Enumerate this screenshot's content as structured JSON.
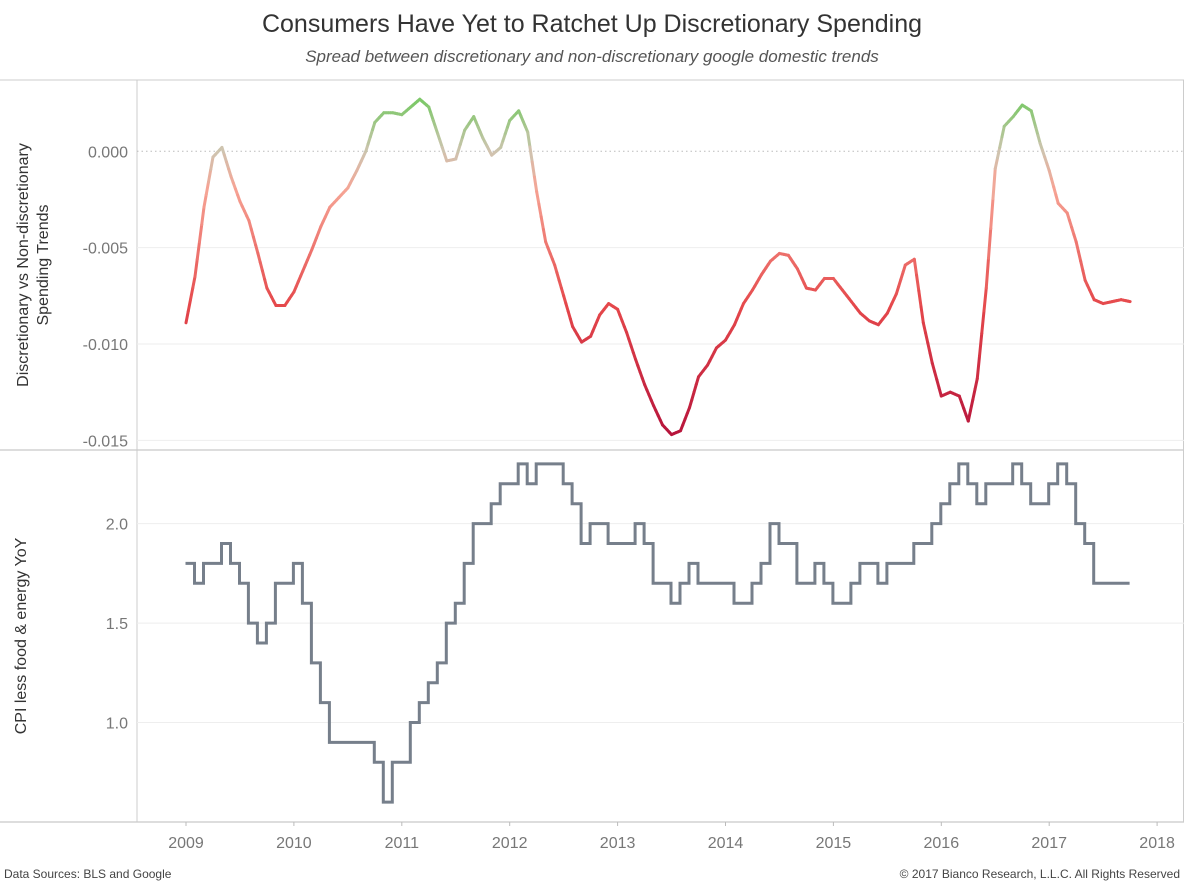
{
  "title": "Consumers Have Yet to Ratchet Up Discretionary Spending",
  "subtitle": "Spread between discretionary and non-discretionary google domestic trends",
  "footer": {
    "sources": "Data Sources: BLS and Google",
    "copyright": "© 2017 Bianco Research, L.L.C. All Rights Reserved"
  },
  "chart_data": [
    {
      "type": "line",
      "ylabel": "Discretionary vs Non-discretionary Spending Trends",
      "ylim": [
        -0.0155,
        0.0037
      ],
      "yticks": [
        "0.000",
        "-0.005",
        "-0.010",
        "-0.015"
      ],
      "ytick_values": [
        0,
        -0.005,
        -0.01,
        -0.015
      ],
      "reference_line": 0,
      "grid": true,
      "color_scale": [
        {
          "value": -0.015,
          "color": "#b5123b"
        },
        {
          "value": -0.008,
          "color": "#e5484b"
        },
        {
          "value": -0.002,
          "color": "#f6a394"
        },
        {
          "value": 0.0,
          "color": "#cfc4b0"
        },
        {
          "value": 0.0025,
          "color": "#7ec86a"
        }
      ],
      "start_month": "2009-01",
      "frequency": "monthly",
      "values": [
        -0.0089,
        -0.0065,
        -0.0029,
        -0.0003,
        0.0002,
        -0.0013,
        -0.0026,
        -0.0036,
        -0.0053,
        -0.0071,
        -0.008,
        -0.008,
        -0.0073,
        -0.0062,
        -0.0051,
        -0.0039,
        -0.0029,
        -0.0024,
        -0.0019,
        -0.001,
        0.0,
        0.0015,
        0.002,
        0.002,
        0.0019,
        0.0023,
        0.0027,
        0.0023,
        0.0009,
        -0.0005,
        -0.0004,
        0.0011,
        0.0018,
        0.0007,
        -0.0002,
        0.0002,
        0.0016,
        0.0021,
        0.001,
        -0.0021,
        -0.0047,
        -0.0059,
        -0.0075,
        -0.0091,
        -0.0099,
        -0.0096,
        -0.0085,
        -0.0079,
        -0.0082,
        -0.0094,
        -0.0108,
        -0.0121,
        -0.0132,
        -0.0142,
        -0.0147,
        -0.0145,
        -0.0133,
        -0.0117,
        -0.0111,
        -0.0102,
        -0.0098,
        -0.009,
        -0.0079,
        -0.0072,
        -0.0064,
        -0.0057,
        -0.0053,
        -0.0054,
        -0.0061,
        -0.0071,
        -0.0072,
        -0.0066,
        -0.0066,
        -0.0072,
        -0.0078,
        -0.0084,
        -0.0088,
        -0.009,
        -0.0084,
        -0.0074,
        -0.0059,
        -0.0056,
        -0.0089,
        -0.011,
        -0.0127,
        -0.0125,
        -0.0127,
        -0.014,
        -0.0118,
        -0.0071,
        -0.0009,
        0.0013,
        0.0018,
        0.0024,
        0.0021,
        0.0004,
        -0.001,
        -0.0027,
        -0.0032,
        -0.0047,
        -0.0067,
        -0.0077,
        -0.0079,
        -0.0078,
        -0.0077,
        -0.0078
      ]
    },
    {
      "type": "line",
      "step": true,
      "ylabel": "CPI less food & energy YoY",
      "ylim": [
        0.5,
        2.37
      ],
      "yticks": [
        "2.0",
        "1.5",
        "1.0"
      ],
      "ytick_values": [
        2.0,
        1.5,
        1.0
      ],
      "grid": true,
      "color": "#767f8b",
      "start_month": "2009-01",
      "frequency": "monthly",
      "values": [
        1.8,
        1.7,
        1.8,
        1.8,
        1.9,
        1.8,
        1.7,
        1.5,
        1.4,
        1.5,
        1.7,
        1.7,
        1.8,
        1.6,
        1.3,
        1.1,
        0.9,
        0.9,
        0.9,
        0.9,
        0.9,
        0.8,
        0.6,
        0.8,
        0.8,
        1.0,
        1.1,
        1.2,
        1.3,
        1.5,
        1.6,
        1.8,
        2.0,
        2.0,
        2.1,
        2.2,
        2.2,
        2.3,
        2.2,
        2.3,
        2.3,
        2.3,
        2.2,
        2.1,
        1.9,
        2.0,
        2.0,
        1.9,
        1.9,
        1.9,
        2.0,
        1.9,
        1.7,
        1.7,
        1.6,
        1.7,
        1.8,
        1.7,
        1.7,
        1.7,
        1.7,
        1.6,
        1.6,
        1.7,
        1.8,
        2.0,
        1.9,
        1.9,
        1.7,
        1.7,
        1.8,
        1.7,
        1.6,
        1.6,
        1.7,
        1.8,
        1.8,
        1.7,
        1.8,
        1.8,
        1.8,
        1.9,
        1.9,
        2.0,
        2.1,
        2.2,
        2.3,
        2.2,
        2.1,
        2.2,
        2.2,
        2.2,
        2.3,
        2.2,
        2.1,
        2.1,
        2.2,
        2.3,
        2.2,
        2.0,
        1.9,
        1.7,
        1.7,
        1.7,
        1.7
      ]
    }
  ],
  "x_axis": {
    "ticks": [
      "2009",
      "2010",
      "2011",
      "2012",
      "2013",
      "2014",
      "2015",
      "2016",
      "2017",
      "2018"
    ]
  }
}
